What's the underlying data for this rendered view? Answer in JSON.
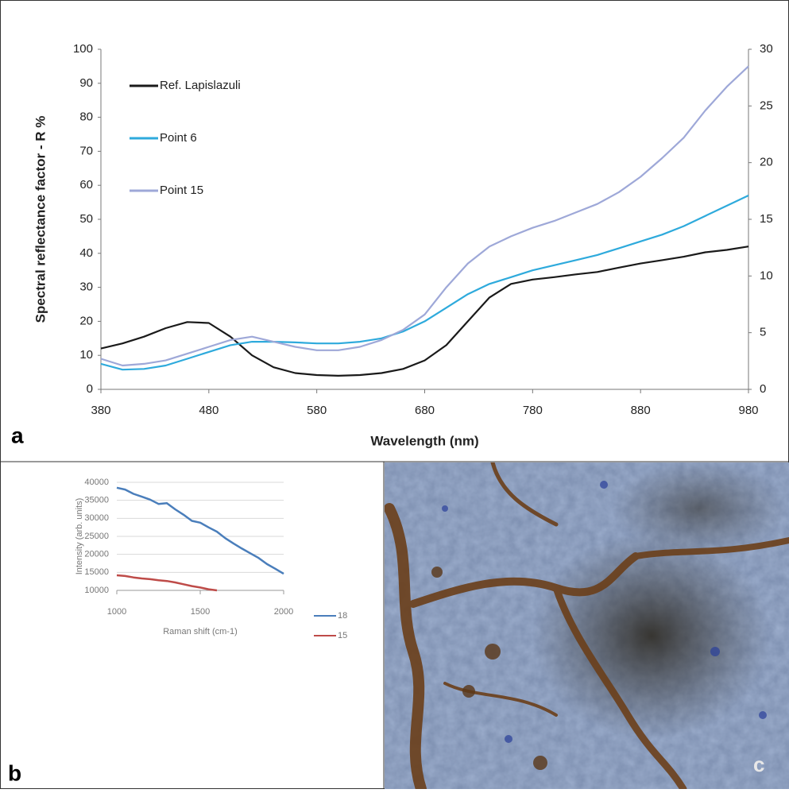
{
  "chart_data": [
    {
      "type": "line",
      "panel": "a",
      "xlabel": "Wavelength (nm)",
      "ylabel": "Spectral reflectance factor - R %",
      "x": [
        380,
        400,
        420,
        440,
        460,
        480,
        500,
        520,
        540,
        560,
        580,
        600,
        620,
        640,
        660,
        680,
        700,
        720,
        740,
        760,
        780,
        800,
        820,
        840,
        860,
        880,
        900,
        920,
        940,
        960,
        980
      ],
      "series": [
        {
          "name": "Ref. Lapislazuli",
          "color": "#1a1a1a",
          "values": [
            12,
            13.5,
            15.5,
            18,
            19.8,
            19.5,
            15.5,
            10,
            6.5,
            4.8,
            4.2,
            4,
            4.2,
            4.8,
            6,
            8.5,
            13,
            20,
            27,
            31,
            32.3,
            33,
            33.8,
            34.5,
            35.8,
            37,
            38,
            39,
            40.3,
            41,
            42
          ]
        },
        {
          "name": "Point 6",
          "color": "#2eaadc",
          "axis": "y2",
          "values": [
            2.25,
            1.74,
            1.8,
            2.1,
            2.7,
            3.3,
            3.9,
            4.2,
            4.2,
            4.14,
            4.05,
            4.05,
            4.2,
            4.5,
            5.1,
            6,
            7.2,
            8.4,
            9.3,
            9.9,
            10.5,
            10.95,
            11.4,
            11.85,
            12.45,
            13.05,
            13.65,
            14.4,
            15.3,
            16.2,
            17.1
          ]
        },
        {
          "name": "Point 15",
          "color": "#9ea8d8",
          "axis": "y2",
          "values": [
            2.7,
            2.1,
            2.25,
            2.55,
            3.15,
            3.75,
            4.35,
            4.65,
            4.2,
            3.75,
            3.45,
            3.45,
            3.75,
            4.35,
            5.25,
            6.6,
            9,
            11.1,
            12.6,
            13.5,
            14.25,
            14.85,
            15.6,
            16.35,
            17.4,
            18.75,
            20.4,
            22.2,
            24.6,
            26.7,
            28.5
          ]
        }
      ],
      "xlim": [
        380,
        980
      ],
      "xticks": [
        380,
        480,
        580,
        680,
        780,
        880,
        980
      ],
      "ylim": [
        0,
        100
      ],
      "yticks": [
        0,
        10,
        20,
        30,
        40,
        50,
        60,
        70,
        80,
        90,
        100
      ],
      "y2lim": [
        0,
        30
      ],
      "y2ticks": [
        0,
        5,
        10,
        15,
        20,
        25,
        30
      ],
      "grid": false,
      "legend": "upper left"
    },
    {
      "type": "line",
      "panel": "b",
      "xlabel": "Raman shift (cm-1)",
      "ylabel": "Intensity (arb. units)",
      "x": [
        1000,
        1050,
        1100,
        1150,
        1200,
        1250,
        1300,
        1350,
        1400,
        1450,
        1500,
        1550,
        1600,
        1650,
        1700,
        1750,
        1800,
        1850,
        1900,
        1950,
        2000
      ],
      "series": [
        {
          "name": "18",
          "color": "#4a7ebb",
          "values": [
            38500,
            38000,
            36800,
            36000,
            35200,
            34000,
            34200,
            32500,
            31000,
            29300,
            28800,
            27500,
            26300,
            24500,
            23000,
            21600,
            20300,
            19000,
            17300,
            16000,
            14600
          ]
        },
        {
          "name": "15",
          "color": "#be4b48",
          "values": [
            14200,
            14000,
            13600,
            13300,
            13100,
            12800,
            12600,
            12200,
            11700,
            11200,
            10800,
            10300,
            10000,
            null,
            null,
            null,
            null,
            null,
            null,
            null,
            null
          ]
        }
      ],
      "xlim": [
        1000,
        2000
      ],
      "xticks": [
        1000,
        1500,
        2000
      ],
      "ylim": [
        10000,
        40000
      ],
      "yticks": [
        10000,
        15000,
        20000,
        25000,
        30000,
        35000,
        40000
      ],
      "grid": true,
      "legend": "right"
    }
  ],
  "photo": {
    "label": "c"
  }
}
